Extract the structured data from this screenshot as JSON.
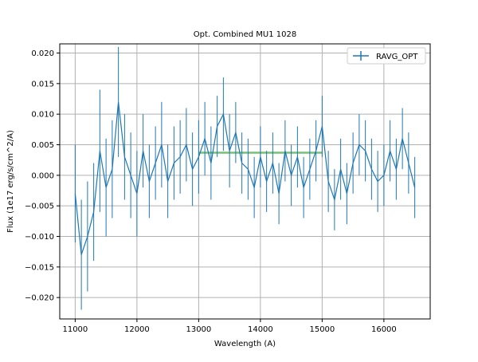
{
  "chart_data": {
    "type": "line",
    "title": "Opt. Combined MU1 1028",
    "xlabel": "Wavelength (A)",
    "ylabel": "Flux (1e17 erg/s/cm^2/A)",
    "xlim": [
      10750,
      16750
    ],
    "ylim": [
      -0.0235,
      0.0215
    ],
    "xticks": [
      11000,
      12000,
      13000,
      14000,
      15000,
      16000
    ],
    "xtick_labels": [
      "11000",
      "12000",
      "13000",
      "14000",
      "15000",
      "16000"
    ],
    "yticks": [
      -0.02,
      -0.015,
      -0.01,
      -0.005,
      0.0,
      0.005,
      0.01,
      0.015,
      0.02
    ],
    "ytick_labels": [
      "−0.020",
      "−0.015",
      "−0.010",
      "−0.005",
      "0.000",
      "0.005",
      "0.010",
      "0.015",
      "0.020"
    ],
    "grid": true,
    "legend": {
      "position": "top-right",
      "entries": [
        "RAVG_OPT"
      ]
    },
    "colors": {
      "series": "#1f77b4",
      "band": "#2ca02c"
    },
    "band": {
      "x_start": 13000,
      "x_end": 15000,
      "y": 0.0037
    },
    "series": [
      {
        "name": "RAVG_OPT",
        "x": [
          11000,
          11100,
          11200,
          11300,
          11400,
          11500,
          11600,
          11700,
          11800,
          11900,
          12000,
          12100,
          12200,
          12300,
          12400,
          12500,
          12600,
          12700,
          12800,
          12900,
          13000,
          13100,
          13200,
          13300,
          13400,
          13500,
          13600,
          13700,
          13800,
          13900,
          14000,
          14100,
          14200,
          14300,
          14400,
          14500,
          14600,
          14700,
          14800,
          14900,
          15000,
          15100,
          15200,
          15300,
          15400,
          15500,
          15600,
          15700,
          15800,
          15900,
          16000,
          16100,
          16200,
          16300,
          16400,
          16500
        ],
        "y": [
          -0.003,
          -0.013,
          -0.01,
          -0.006,
          0.004,
          -0.002,
          0.001,
          0.012,
          0.003,
          0.0,
          -0.003,
          0.004,
          -0.001,
          0.002,
          0.005,
          -0.001,
          0.002,
          0.003,
          0.005,
          0.001,
          0.003,
          0.006,
          0.002,
          0.008,
          0.01,
          0.004,
          0.007,
          0.002,
          0.001,
          -0.002,
          0.003,
          -0.001,
          0.002,
          -0.003,
          0.004,
          0.0,
          0.003,
          -0.002,
          0.001,
          0.004,
          0.008,
          -0.001,
          -0.004,
          0.001,
          -0.003,
          0.002,
          0.005,
          0.004,
          0.001,
          -0.001,
          0.0,
          0.004,
          0.001,
          0.006,
          0.002,
          -0.002
        ],
        "err": [
          0.008,
          0.009,
          0.009,
          0.008,
          0.01,
          0.008,
          0.008,
          0.009,
          0.007,
          0.007,
          0.007,
          0.006,
          0.006,
          0.006,
          0.007,
          0.006,
          0.006,
          0.006,
          0.006,
          0.006,
          0.006,
          0.006,
          0.006,
          0.005,
          0.006,
          0.006,
          0.005,
          0.005,
          0.005,
          0.005,
          0.005,
          0.005,
          0.005,
          0.005,
          0.005,
          0.005,
          0.005,
          0.005,
          0.005,
          0.005,
          0.005,
          0.005,
          0.005,
          0.005,
          0.005,
          0.005,
          0.005,
          0.005,
          0.005,
          0.005,
          0.005,
          0.005,
          0.005,
          0.005,
          0.005,
          0.005
        ]
      }
    ]
  }
}
